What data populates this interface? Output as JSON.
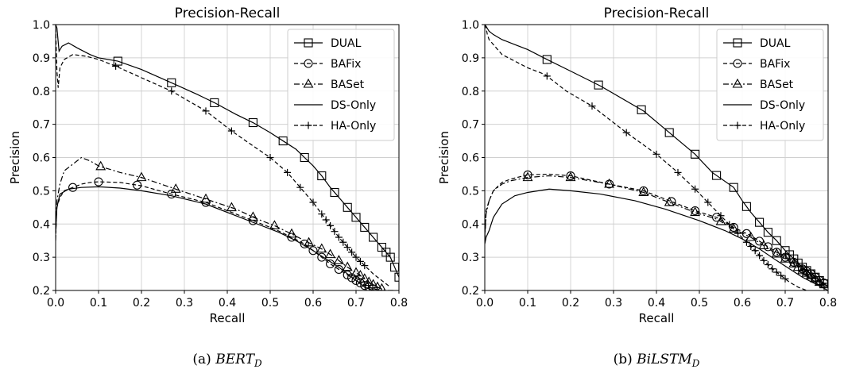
{
  "chart_data": [
    {
      "type": "line",
      "title": "Precision-Recall",
      "xlabel": "Recall",
      "ylabel": "Precision",
      "xlim": [
        0.0,
        0.8
      ],
      "ylim": [
        0.2,
        1.0
      ],
      "xticks": [
        "0.0",
        "0.1",
        "0.2",
        "0.3",
        "0.4",
        "0.5",
        "0.6",
        "0.7",
        "0.8"
      ],
      "yticks": [
        "0.2",
        "0.3",
        "0.4",
        "0.5",
        "0.6",
        "0.7",
        "0.8",
        "0.9",
        "1.0"
      ],
      "grid": true,
      "legend_position": "top-right",
      "caption_prefix": "(a) ",
      "caption_main": "BERT",
      "caption_sub": "D",
      "series": [
        {
          "name": "DUAL",
          "marker": "square",
          "dash": "solid",
          "x": [
            0.0,
            0.003,
            0.008,
            0.015,
            0.03,
            0.05,
            0.08,
            0.1,
            0.145,
            0.2,
            0.27,
            0.33,
            0.37,
            0.42,
            0.46,
            0.5,
            0.53,
            0.56,
            0.58,
            0.6,
            0.62,
            0.64,
            0.66,
            0.68,
            0.7,
            0.72,
            0.74,
            0.76,
            0.78,
            0.79,
            0.8
          ],
          "y": [
            1.0,
            0.99,
            0.92,
            0.935,
            0.945,
            0.93,
            0.91,
            0.9,
            0.89,
            0.865,
            0.825,
            0.79,
            0.765,
            0.73,
            0.705,
            0.675,
            0.65,
            0.625,
            0.6,
            0.575,
            0.545,
            0.51,
            0.48,
            0.45,
            0.42,
            0.39,
            0.36,
            0.33,
            0.3,
            0.27,
            0.24
          ],
          "markers_x": [
            0.145,
            0.27,
            0.37,
            0.46,
            0.53,
            0.58,
            0.62,
            0.65,
            0.68,
            0.7,
            0.72,
            0.74,
            0.76,
            0.77,
            0.78,
            0.79,
            0.8
          ]
        },
        {
          "name": "BAFix",
          "marker": "circle",
          "dash": "dashed",
          "x": [
            0.0,
            0.003,
            0.01,
            0.02,
            0.04,
            0.06,
            0.08,
            0.1,
            0.15,
            0.2,
            0.27,
            0.35,
            0.42,
            0.47,
            0.51,
            0.55,
            0.58,
            0.61,
            0.64,
            0.67,
            0.7,
            0.72,
            0.74,
            0.76,
            0.77
          ],
          "y": [
            0.37,
            0.45,
            0.48,
            0.5,
            0.51,
            0.52,
            0.525,
            0.527,
            0.525,
            0.515,
            0.49,
            0.465,
            0.43,
            0.405,
            0.385,
            0.36,
            0.34,
            0.31,
            0.28,
            0.255,
            0.23,
            0.215,
            0.205,
            0.2,
            0.2
          ],
          "markers_x": [
            0.04,
            0.1,
            0.19,
            0.27,
            0.35,
            0.46,
            0.55,
            0.58,
            0.6,
            0.62,
            0.64,
            0.66,
            0.68,
            0.69,
            0.7,
            0.71,
            0.72,
            0.73,
            0.74
          ]
        },
        {
          "name": "BASet",
          "marker": "triangle",
          "dash": "dashdot",
          "x": [
            0.0,
            0.003,
            0.01,
            0.02,
            0.04,
            0.06,
            0.08,
            0.1,
            0.15,
            0.2,
            0.28,
            0.35,
            0.42,
            0.47,
            0.51,
            0.55,
            0.58,
            0.62,
            0.65,
            0.68,
            0.71,
            0.73,
            0.75,
            0.77,
            0.79
          ],
          "y": [
            0.35,
            0.47,
            0.52,
            0.56,
            0.58,
            0.6,
            0.59,
            0.575,
            0.555,
            0.54,
            0.505,
            0.475,
            0.445,
            0.415,
            0.395,
            0.37,
            0.35,
            0.325,
            0.3,
            0.27,
            0.245,
            0.225,
            0.21,
            0.2,
            0.2
          ],
          "markers_x": [
            0.105,
            0.2,
            0.28,
            0.35,
            0.41,
            0.46,
            0.51,
            0.55,
            0.59,
            0.62,
            0.64,
            0.66,
            0.68,
            0.7,
            0.71,
            0.72,
            0.73,
            0.74,
            0.75,
            0.76
          ]
        },
        {
          "name": "DS-Only",
          "marker": "none",
          "dash": "solid",
          "x": [
            0.0,
            0.003,
            0.01,
            0.03,
            0.06,
            0.1,
            0.15,
            0.2,
            0.27,
            0.35,
            0.42,
            0.47,
            0.52,
            0.56,
            0.6,
            0.63,
            0.66,
            0.68,
            0.7,
            0.72,
            0.74
          ],
          "y": [
            0.37,
            0.45,
            0.49,
            0.505,
            0.51,
            0.512,
            0.508,
            0.5,
            0.485,
            0.46,
            0.425,
            0.4,
            0.375,
            0.35,
            0.32,
            0.295,
            0.27,
            0.25,
            0.23,
            0.21,
            0.2
          ]
        },
        {
          "name": "HA-Only",
          "marker": "plus",
          "dash": "dashed",
          "x": [
            0.0,
            0.003,
            0.006,
            0.01,
            0.02,
            0.04,
            0.07,
            0.1,
            0.14,
            0.2,
            0.27,
            0.35,
            0.41,
            0.46,
            0.5,
            0.54,
            0.57,
            0.6,
            0.62,
            0.64,
            0.66,
            0.68,
            0.7,
            0.72,
            0.74,
            0.76,
            0.78
          ],
          "y": [
            0.99,
            0.86,
            0.81,
            0.87,
            0.895,
            0.91,
            0.905,
            0.895,
            0.875,
            0.84,
            0.8,
            0.74,
            0.68,
            0.635,
            0.6,
            0.555,
            0.51,
            0.465,
            0.43,
            0.395,
            0.36,
            0.33,
            0.3,
            0.275,
            0.25,
            0.23,
            0.21
          ],
          "markers_x": [
            0.14,
            0.27,
            0.35,
            0.41,
            0.5,
            0.54,
            0.57,
            0.6,
            0.62,
            0.63,
            0.64,
            0.65,
            0.66,
            0.67,
            0.68,
            0.69,
            0.7,
            0.71,
            0.72
          ]
        }
      ]
    },
    {
      "type": "line",
      "title": "Precision-Recall",
      "xlabel": "Recall",
      "ylabel": "Precision",
      "xlim": [
        0.0,
        0.8
      ],
      "ylim": [
        0.2,
        1.0
      ],
      "xticks": [
        "0.0",
        "0.1",
        "0.2",
        "0.3",
        "0.4",
        "0.5",
        "0.6",
        "0.7",
        "0.8"
      ],
      "yticks": [
        "0.2",
        "0.3",
        "0.4",
        "0.5",
        "0.6",
        "0.7",
        "0.8",
        "0.9",
        "1.0"
      ],
      "grid": true,
      "legend_position": "top-right",
      "caption_prefix": "(b) ",
      "caption_main": "BiLSTM",
      "caption_sub": "D",
      "series": [
        {
          "name": "DUAL",
          "marker": "square",
          "dash": "solid",
          "x": [
            0.0,
            0.003,
            0.01,
            0.02,
            0.04,
            0.07,
            0.1,
            0.145,
            0.2,
            0.27,
            0.37,
            0.43,
            0.49,
            0.53,
            0.58,
            0.6,
            0.62,
            0.64,
            0.66,
            0.68,
            0.7,
            0.72,
            0.74,
            0.76,
            0.78,
            0.8
          ],
          "y": [
            1.0,
            0.995,
            0.98,
            0.97,
            0.955,
            0.94,
            0.925,
            0.895,
            0.86,
            0.815,
            0.74,
            0.675,
            0.61,
            0.555,
            0.51,
            0.47,
            0.435,
            0.405,
            0.375,
            0.35,
            0.32,
            0.295,
            0.27,
            0.25,
            0.23,
            0.21
          ],
          "markers_x": [
            0.145,
            0.265,
            0.365,
            0.43,
            0.49,
            0.54,
            0.58,
            0.61,
            0.64,
            0.66,
            0.68,
            0.7,
            0.71,
            0.72,
            0.73,
            0.74,
            0.75,
            0.76,
            0.77,
            0.78,
            0.79,
            0.8
          ]
        },
        {
          "name": "BAFix",
          "marker": "circle",
          "dash": "dashed",
          "x": [
            0.0,
            0.003,
            0.01,
            0.02,
            0.04,
            0.06,
            0.1,
            0.15,
            0.2,
            0.29,
            0.37,
            0.43,
            0.49,
            0.54,
            0.58,
            0.62,
            0.65,
            0.68,
            0.7,
            0.72,
            0.74,
            0.76,
            0.78,
            0.8
          ],
          "y": [
            0.36,
            0.44,
            0.47,
            0.5,
            0.525,
            0.535,
            0.548,
            0.55,
            0.545,
            0.52,
            0.5,
            0.47,
            0.44,
            0.42,
            0.39,
            0.365,
            0.34,
            0.315,
            0.3,
            0.285,
            0.265,
            0.25,
            0.23,
            0.215
          ],
          "markers_x": [
            0.1,
            0.2,
            0.29,
            0.37,
            0.435,
            0.49,
            0.54,
            0.58,
            0.61,
            0.64,
            0.66,
            0.68,
            0.7,
            0.72,
            0.74,
            0.75,
            0.76,
            0.77,
            0.78,
            0.79
          ]
        },
        {
          "name": "BASet",
          "marker": "triangle",
          "dash": "dashdot",
          "x": [
            0.0,
            0.003,
            0.01,
            0.02,
            0.04,
            0.06,
            0.1,
            0.15,
            0.2,
            0.29,
            0.37,
            0.43,
            0.49,
            0.54,
            0.58,
            0.62,
            0.65,
            0.68,
            0.7,
            0.72,
            0.74,
            0.76,
            0.78,
            0.8
          ],
          "y": [
            0.35,
            0.43,
            0.47,
            0.5,
            0.52,
            0.53,
            0.54,
            0.545,
            0.54,
            0.52,
            0.495,
            0.465,
            0.435,
            0.415,
            0.385,
            0.36,
            0.335,
            0.31,
            0.295,
            0.28,
            0.26,
            0.245,
            0.225,
            0.21
          ],
          "markers_x": [
            0.1,
            0.2,
            0.29,
            0.37,
            0.43,
            0.49,
            0.55,
            0.58,
            0.62,
            0.65,
            0.68,
            0.7,
            0.72,
            0.73,
            0.74,
            0.75,
            0.76,
            0.77,
            0.78
          ]
        },
        {
          "name": "DS-Only",
          "marker": "none",
          "dash": "solid",
          "x": [
            0.0,
            0.003,
            0.01,
            0.02,
            0.04,
            0.07,
            0.1,
            0.15,
            0.2,
            0.27,
            0.35,
            0.42,
            0.5,
            0.56,
            0.6,
            0.64,
            0.68,
            0.71,
            0.74,
            0.77,
            0.8
          ],
          "y": [
            0.34,
            0.36,
            0.38,
            0.42,
            0.46,
            0.485,
            0.495,
            0.505,
            0.5,
            0.49,
            0.47,
            0.445,
            0.41,
            0.38,
            0.355,
            0.325,
            0.29,
            0.265,
            0.24,
            0.22,
            0.2
          ]
        },
        {
          "name": "HA-Only",
          "marker": "plus",
          "dash": "dashed",
          "x": [
            0.0,
            0.003,
            0.006,
            0.01,
            0.02,
            0.04,
            0.07,
            0.1,
            0.14,
            0.19,
            0.25,
            0.33,
            0.4,
            0.45,
            0.49,
            0.52,
            0.55,
            0.58,
            0.61,
            0.63,
            0.65,
            0.67,
            0.69,
            0.71,
            0.73,
            0.75
          ],
          "y": [
            1.0,
            0.99,
            0.97,
            0.955,
            0.94,
            0.91,
            0.89,
            0.87,
            0.85,
            0.8,
            0.755,
            0.675,
            0.61,
            0.555,
            0.505,
            0.465,
            0.425,
            0.385,
            0.345,
            0.32,
            0.29,
            0.265,
            0.245,
            0.225,
            0.21,
            0.2
          ],
          "markers_x": [
            0.145,
            0.25,
            0.33,
            0.4,
            0.45,
            0.49,
            0.52,
            0.55,
            0.57,
            0.59,
            0.61,
            0.62,
            0.63,
            0.64,
            0.65,
            0.66,
            0.67,
            0.68,
            0.69,
            0.7
          ]
        }
      ]
    }
  ]
}
